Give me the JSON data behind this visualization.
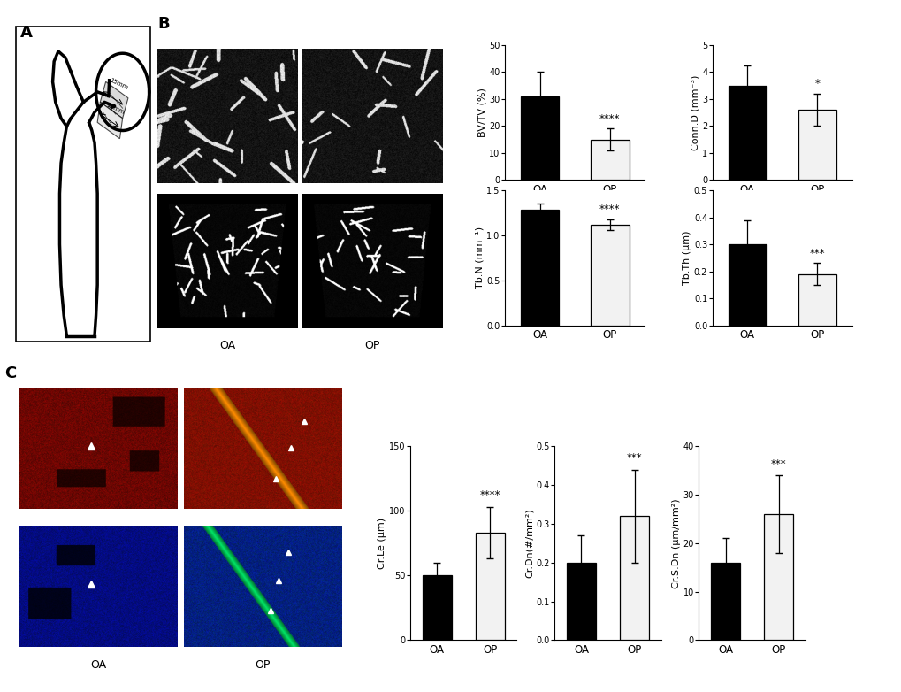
{
  "bar_charts": {
    "BVTV": {
      "ylabel": "BV/TV (%)",
      "ylim": [
        0,
        50
      ],
      "yticks": [
        0,
        10,
        20,
        30,
        40,
        50
      ],
      "OA_mean": 31,
      "OA_err": 9,
      "OP_mean": 15,
      "OP_err": 4,
      "sig": "****"
    },
    "ConnD": {
      "ylabel": "Conn.D (mm⁻³)",
      "ylim": [
        0,
        5
      ],
      "yticks": [
        0,
        1,
        2,
        3,
        4,
        5
      ],
      "OA_mean": 3.5,
      "OA_err": 0.75,
      "OP_mean": 2.6,
      "OP_err": 0.6,
      "sig": "*"
    },
    "TbN": {
      "ylabel": "Tb.N (mm⁻¹)",
      "ylim": [
        0.0,
        1.5
      ],
      "yticks": [
        0.0,
        0.5,
        1.0,
        1.5
      ],
      "OA_mean": 1.28,
      "OA_err": 0.07,
      "OP_mean": 1.12,
      "OP_err": 0.06,
      "sig": "****"
    },
    "TbTh": {
      "ylabel": "Tb.Th (μm)",
      "ylim": [
        0.0,
        0.5
      ],
      "yticks": [
        0.0,
        0.1,
        0.2,
        0.3,
        0.4,
        0.5
      ],
      "OA_mean": 0.3,
      "OA_err": 0.09,
      "OP_mean": 0.19,
      "OP_err": 0.04,
      "sig": "***"
    },
    "CrLe": {
      "ylabel": "Cr.Le (μm)",
      "ylim": [
        0,
        150
      ],
      "yticks": [
        0,
        50,
        100,
        150
      ],
      "OA_mean": 50,
      "OA_err": 10,
      "OP_mean": 83,
      "OP_err": 20,
      "sig": "****"
    },
    "CrDn": {
      "ylabel": "Cr.Dn(#/mm²)",
      "ylim": [
        0.0,
        0.5
      ],
      "yticks": [
        0.0,
        0.1,
        0.2,
        0.3,
        0.4,
        0.5
      ],
      "OA_mean": 0.2,
      "OA_err": 0.07,
      "OP_mean": 0.32,
      "OP_err": 0.12,
      "sig": "***"
    },
    "CrSDn": {
      "ylabel": "Cr.S.Dn (μm/mm²)",
      "ylim": [
        0,
        40
      ],
      "yticks": [
        0,
        10,
        20,
        30,
        40
      ],
      "OA_mean": 16,
      "OA_err": 5,
      "OP_mean": 26,
      "OP_err": 8,
      "sig": "***"
    }
  },
  "colors": {
    "OA_bar": "#000000",
    "OP_bar": "#f2f2f2",
    "bar_edge": "#000000",
    "background": "#ffffff",
    "text": "#000000"
  },
  "font_sizes": {
    "panel_label": 13,
    "axis_label": 8,
    "tick_label": 7,
    "sig_label": 8.5,
    "xlabel": 8.5
  }
}
